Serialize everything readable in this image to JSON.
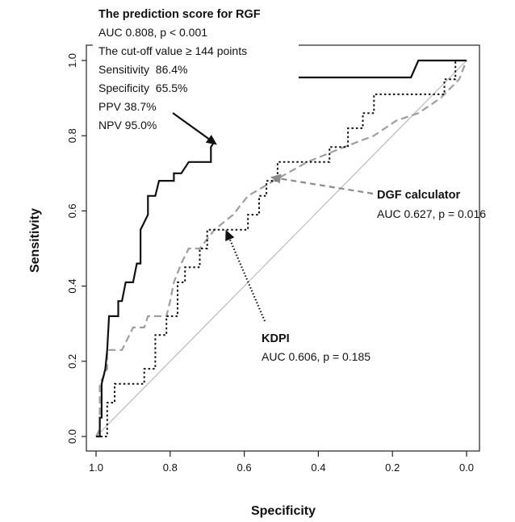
{
  "chart_data": {
    "type": "line",
    "title": "",
    "xlabel": "Specificity",
    "ylabel": "Sensitivity",
    "xlim": [
      1.0,
      0.0
    ],
    "ylim": [
      0.0,
      1.0
    ],
    "x_reversed": true,
    "x_ticks": [
      "1.0",
      "0.8",
      "0.6",
      "0.4",
      "0.2",
      "0.0"
    ],
    "y_ticks": [
      "0.0",
      "0.2",
      "0.4",
      "0.6",
      "0.8",
      "1.0"
    ],
    "grid": false,
    "legend": "none",
    "series": [
      {
        "key": "rgf",
        "style": "solid",
        "color": "#111111",
        "points": [
          [
            1.0,
            0.0
          ],
          [
            0.99,
            0.0
          ],
          [
            0.99,
            0.05
          ],
          [
            0.985,
            0.05
          ],
          [
            0.985,
            0.14
          ],
          [
            0.975,
            0.18
          ],
          [
            0.97,
            0.23
          ],
          [
            0.965,
            0.32
          ],
          [
            0.94,
            0.32
          ],
          [
            0.94,
            0.36
          ],
          [
            0.93,
            0.36
          ],
          [
            0.92,
            0.41
          ],
          [
            0.9,
            0.41
          ],
          [
            0.89,
            0.46
          ],
          [
            0.88,
            0.46
          ],
          [
            0.88,
            0.55
          ],
          [
            0.86,
            0.59
          ],
          [
            0.86,
            0.64
          ],
          [
            0.84,
            0.64
          ],
          [
            0.83,
            0.68
          ],
          [
            0.81,
            0.68
          ],
          [
            0.79,
            0.68
          ],
          [
            0.79,
            0.7
          ],
          [
            0.77,
            0.7
          ],
          [
            0.75,
            0.73
          ],
          [
            0.69,
            0.73
          ],
          [
            0.69,
            0.77
          ],
          [
            0.67,
            0.8
          ],
          [
            0.67,
            0.82
          ],
          [
            0.66,
            0.82
          ],
          [
            0.66,
            0.86
          ],
          [
            0.5,
            0.86
          ],
          [
            0.5,
            0.91
          ],
          [
            0.48,
            0.91
          ],
          [
            0.48,
            0.955
          ],
          [
            0.15,
            0.955
          ],
          [
            0.13,
            1.0
          ],
          [
            0.02,
            1.0
          ],
          [
            0.0,
            1.0
          ]
        ]
      },
      {
        "key": "dgf",
        "style": "dashed",
        "color": "#9e9e9e",
        "points": [
          [
            1.0,
            0.0
          ],
          [
            0.99,
            0.02
          ],
          [
            0.99,
            0.14
          ],
          [
            0.97,
            0.18
          ],
          [
            0.97,
            0.23
          ],
          [
            0.93,
            0.23
          ],
          [
            0.91,
            0.27
          ],
          [
            0.9,
            0.29
          ],
          [
            0.87,
            0.29
          ],
          [
            0.86,
            0.32
          ],
          [
            0.81,
            0.32
          ],
          [
            0.8,
            0.36
          ],
          [
            0.79,
            0.41
          ],
          [
            0.77,
            0.46
          ],
          [
            0.75,
            0.5
          ],
          [
            0.72,
            0.5
          ],
          [
            0.68,
            0.55
          ],
          [
            0.63,
            0.59
          ],
          [
            0.59,
            0.64
          ],
          [
            0.52,
            0.68
          ],
          [
            0.43,
            0.73
          ],
          [
            0.33,
            0.77
          ],
          [
            0.25,
            0.8
          ],
          [
            0.19,
            0.84
          ],
          [
            0.13,
            0.86
          ],
          [
            0.07,
            0.9
          ],
          [
            0.02,
            0.95
          ],
          [
            0.0,
            1.0
          ]
        ]
      },
      {
        "key": "kdpi",
        "style": "dotted",
        "color": "#111111",
        "points": [
          [
            1.0,
            0.0
          ],
          [
            0.97,
            0.0
          ],
          [
            0.97,
            0.09
          ],
          [
            0.95,
            0.09
          ],
          [
            0.95,
            0.14
          ],
          [
            0.87,
            0.14
          ],
          [
            0.87,
            0.18
          ],
          [
            0.84,
            0.18
          ],
          [
            0.84,
            0.27
          ],
          [
            0.81,
            0.27
          ],
          [
            0.81,
            0.32
          ],
          [
            0.78,
            0.32
          ],
          [
            0.78,
            0.41
          ],
          [
            0.76,
            0.41
          ],
          [
            0.76,
            0.45
          ],
          [
            0.72,
            0.45
          ],
          [
            0.72,
            0.5
          ],
          [
            0.7,
            0.5
          ],
          [
            0.7,
            0.55
          ],
          [
            0.59,
            0.55
          ],
          [
            0.59,
            0.59
          ],
          [
            0.56,
            0.59
          ],
          [
            0.56,
            0.64
          ],
          [
            0.54,
            0.64
          ],
          [
            0.54,
            0.68
          ],
          [
            0.51,
            0.68
          ],
          [
            0.51,
            0.73
          ],
          [
            0.37,
            0.73
          ],
          [
            0.37,
            0.77
          ],
          [
            0.32,
            0.77
          ],
          [
            0.32,
            0.82
          ],
          [
            0.28,
            0.82
          ],
          [
            0.28,
            0.86
          ],
          [
            0.25,
            0.86
          ],
          [
            0.25,
            0.91
          ],
          [
            0.06,
            0.91
          ],
          [
            0.06,
            0.95
          ],
          [
            0.03,
            0.95
          ],
          [
            0.03,
            1.0
          ],
          [
            0.0,
            1.0
          ]
        ]
      },
      {
        "key": "reference",
        "style": "solid",
        "color": "#b5b5b5",
        "points": [
          [
            1.0,
            0.0
          ],
          [
            0.0,
            1.0
          ]
        ]
      }
    ],
    "annotations": {
      "rgf": {
        "title": "The prediction score for RGF",
        "lines": [
          "AUC 0.808, p < 0.001",
          "The cut-off value ≥ 144 points",
          "Sensitivity  86.4%",
          "Specificity  65.5%",
          "PPV 38.7%",
          "NPV 95.0%"
        ],
        "arrow_target": [
          0.68,
          0.78
        ]
      },
      "dgf": {
        "title": "DGF calculator",
        "lines": [
          "AUC 0.627, p = 0.016"
        ],
        "arrow_target": [
          0.53,
          0.69
        ]
      },
      "kdpi": {
        "title": "KDPI",
        "lines": [
          "AUC 0.606, p = 0.185"
        ],
        "arrow_target": [
          0.65,
          0.55
        ]
      }
    }
  }
}
